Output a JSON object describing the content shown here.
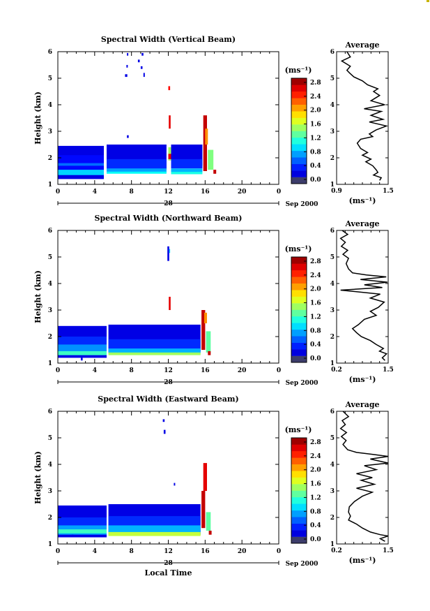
{
  "chart_data": [
    {
      "type": "heatmap",
      "title": "Spectral Width (Vertical Beam)",
      "ylabel": "Height (km)",
      "ylim": [
        1,
        6
      ],
      "xlim": [
        0,
        24
      ],
      "xticks": [
        "0",
        "4",
        "8",
        "12",
        "16",
        "20",
        "0"
      ],
      "date_label": "Sep 2000",
      "day_label": "28",
      "colorbar": {
        "unit": "(ms⁻¹)",
        "ticks": [
          "0.0",
          "0.4",
          "0.8",
          "1.2",
          "1.6",
          "2.0",
          "2.4",
          "2.8"
        ],
        "range": [
          0,
          3.0
        ]
      },
      "cells": [
        [
          0,
          5.0,
          1.2,
          2.45,
          0.3
        ],
        [
          0,
          5.0,
          1.5,
          2.1,
          0.4
        ],
        [
          0,
          5.0,
          1.7,
          1.8,
          0.7
        ],
        [
          0,
          5.0,
          1.35,
          1.55,
          1.0
        ],
        [
          5.3,
          11.8,
          1.6,
          2.5,
          0.3
        ],
        [
          5.3,
          11.8,
          1.55,
          1.95,
          0.5
        ],
        [
          5.3,
          11.8,
          1.45,
          1.6,
          0.85
        ],
        [
          5.3,
          11.8,
          1.4,
          1.48,
          1.15
        ],
        [
          12.3,
          15.7,
          1.7,
          2.5,
          0.3
        ],
        [
          12.3,
          15.7,
          1.6,
          1.95,
          0.5
        ],
        [
          12.3,
          15.7,
          1.45,
          1.6,
          0.9
        ],
        [
          12.3,
          15.7,
          1.38,
          1.47,
          1.2
        ],
        [
          12.0,
          12.3,
          1.9,
          2.4,
          1.6
        ],
        [
          12.05,
          12.25,
          3.1,
          3.6,
          2.7
        ],
        [
          12.0,
          12.3,
          1.95,
          2.15,
          2.7
        ],
        [
          15.8,
          16.2,
          1.5,
          3.6,
          2.8
        ],
        [
          16.0,
          16.3,
          2.5,
          3.1,
          2.2
        ],
        [
          16.3,
          16.9,
          1.55,
          2.3,
          1.5
        ],
        [
          16.9,
          17.2,
          1.4,
          1.55,
          2.8
        ],
        [
          7.3,
          7.55,
          5.05,
          5.15,
          0.3
        ],
        [
          7.45,
          7.6,
          5.4,
          5.5,
          0.3
        ],
        [
          7.5,
          7.65,
          5.85,
          5.95,
          0.3
        ],
        [
          8.7,
          8.9,
          5.6,
          5.7,
          0.3
        ],
        [
          9.0,
          9.2,
          5.35,
          5.45,
          0.3
        ],
        [
          9.1,
          9.3,
          5.85,
          5.95,
          0.3
        ],
        [
          9.3,
          9.45,
          5.05,
          5.2,
          0.3
        ],
        [
          12.0,
          12.2,
          4.55,
          4.7,
          2.6
        ],
        [
          7.5,
          7.7,
          2.75,
          2.85,
          0.3
        ]
      ],
      "profile": {
        "title": "Average",
        "xticks": [
          "0.9",
          "1.5"
        ],
        "xlabel": "(ms⁻¹)",
        "xlim": [
          0.9,
          1.5
        ],
        "points": [
          [
            1.02,
            6.0
          ],
          [
            1.06,
            5.8
          ],
          [
            0.96,
            5.65
          ],
          [
            1.06,
            5.45
          ],
          [
            1.02,
            5.3
          ],
          [
            1.05,
            5.2
          ],
          [
            1.1,
            5.05
          ],
          [
            1.2,
            4.9
          ],
          [
            1.26,
            4.75
          ],
          [
            1.38,
            4.6
          ],
          [
            1.33,
            4.5
          ],
          [
            1.4,
            4.35
          ],
          [
            1.3,
            4.15
          ],
          [
            1.46,
            4.0
          ],
          [
            1.22,
            3.85
          ],
          [
            1.42,
            3.75
          ],
          [
            1.3,
            3.6
          ],
          [
            1.44,
            3.45
          ],
          [
            1.28,
            3.35
          ],
          [
            1.48,
            3.2
          ],
          [
            1.36,
            3.05
          ],
          [
            1.28,
            2.9
          ],
          [
            1.32,
            2.8
          ],
          [
            1.18,
            2.7
          ],
          [
            1.14,
            2.55
          ],
          [
            1.18,
            2.35
          ],
          [
            1.26,
            2.2
          ],
          [
            1.2,
            2.1
          ],
          [
            1.3,
            1.95
          ],
          [
            1.24,
            1.85
          ],
          [
            1.32,
            1.7
          ],
          [
            1.36,
            1.55
          ],
          [
            1.38,
            1.45
          ],
          [
            1.33,
            1.35
          ],
          [
            1.42,
            1.25
          ],
          [
            1.4,
            1.15
          ]
        ]
      }
    },
    {
      "type": "heatmap",
      "title": "Spectral Width (Northward Beam)",
      "ylabel": "Height (km)",
      "ylim": [
        1,
        6
      ],
      "xlim": [
        0,
        24
      ],
      "xticks": [
        "0",
        "4",
        "8",
        "12",
        "16",
        "20",
        "0"
      ],
      "date_label": "Sep 2000",
      "day_label": "28",
      "colorbar": {
        "unit": "(ms⁻¹)",
        "ticks": [
          "0.0",
          "0.4",
          "0.8",
          "1.2",
          "1.6",
          "2.0",
          "2.4",
          "2.8"
        ],
        "range": [
          0,
          3.0
        ]
      },
      "cells": [
        [
          0,
          5.3,
          1.2,
          2.4,
          0.3
        ],
        [
          0,
          5.3,
          1.3,
          2.0,
          0.5
        ],
        [
          0,
          5.3,
          1.35,
          1.7,
          0.8
        ],
        [
          0,
          5.3,
          1.3,
          1.45,
          1.3
        ],
        [
          5.5,
          15.5,
          1.4,
          2.45,
          0.3
        ],
        [
          5.5,
          15.5,
          1.45,
          1.9,
          0.5
        ],
        [
          5.5,
          15.5,
          1.35,
          1.55,
          0.9
        ],
        [
          5.5,
          15.5,
          1.3,
          1.4,
          1.6
        ],
        [
          15.6,
          16.0,
          1.5,
          3.0,
          2.8
        ],
        [
          15.9,
          16.2,
          2.5,
          2.9,
          2.2
        ],
        [
          16.1,
          16.6,
          1.4,
          2.2,
          1.4
        ],
        [
          16.3,
          16.6,
          1.3,
          1.45,
          2.8
        ],
        [
          12.05,
          12.25,
          3.0,
          3.5,
          2.7
        ],
        [
          11.9,
          12.1,
          4.85,
          5.4,
          0.3
        ],
        [
          12.1,
          12.2,
          5.15,
          5.3,
          1.0
        ],
        [
          2.5,
          2.7,
          1.1,
          1.2,
          0.3
        ]
      ],
      "profile": {
        "title": "Average",
        "xticks": [
          "0.2",
          "1.5"
        ],
        "xlabel": "(ms⁻¹)",
        "xlim": [
          0.2,
          1.5
        ],
        "points": [
          [
            0.34,
            6.0
          ],
          [
            0.48,
            5.85
          ],
          [
            0.3,
            5.7
          ],
          [
            0.42,
            5.55
          ],
          [
            0.32,
            5.4
          ],
          [
            0.48,
            5.25
          ],
          [
            0.36,
            5.1
          ],
          [
            0.5,
            4.95
          ],
          [
            0.44,
            4.75
          ],
          [
            0.5,
            4.55
          ],
          [
            0.6,
            4.4
          ],
          [
            0.95,
            4.32
          ],
          [
            1.45,
            4.25
          ],
          [
            0.8,
            4.15
          ],
          [
            1.48,
            4.05
          ],
          [
            0.9,
            3.95
          ],
          [
            1.35,
            3.85
          ],
          [
            0.3,
            3.75
          ],
          [
            1.3,
            3.6
          ],
          [
            1.05,
            3.45
          ],
          [
            1.4,
            3.3
          ],
          [
            1.25,
            3.1
          ],
          [
            1.05,
            2.95
          ],
          [
            1.2,
            2.8
          ],
          [
            0.9,
            2.65
          ],
          [
            0.75,
            2.45
          ],
          [
            0.6,
            2.3
          ],
          [
            0.7,
            2.15
          ],
          [
            0.82,
            2.0
          ],
          [
            1.05,
            1.85
          ],
          [
            1.2,
            1.7
          ],
          [
            1.38,
            1.55
          ],
          [
            1.28,
            1.45
          ],
          [
            1.46,
            1.35
          ],
          [
            1.35,
            1.2
          ],
          [
            1.42,
            1.1
          ]
        ]
      }
    },
    {
      "type": "heatmap",
      "title": "Spectral Width (Eastward Beam)",
      "ylabel": "Height (km)",
      "xlabel": "Local Time",
      "ylim": [
        1,
        6
      ],
      "xlim": [
        0,
        24
      ],
      "xticks": [
        "0",
        "4",
        "8",
        "12",
        "16",
        "20",
        "0"
      ],
      "date_label": "Sep 2000",
      "day_label": "28",
      "colorbar": {
        "unit": "(ms⁻¹)",
        "ticks": [
          "0.0",
          "0.4",
          "0.8",
          "1.2",
          "1.6",
          "2.0",
          "2.4",
          "2.8"
        ],
        "range": [
          0,
          3.0
        ]
      },
      "cells": [
        [
          0,
          5.3,
          1.25,
          2.45,
          0.3
        ],
        [
          0,
          5.3,
          1.4,
          2.0,
          0.5
        ],
        [
          0,
          5.3,
          1.35,
          1.7,
          0.85
        ],
        [
          0,
          5.3,
          1.4,
          1.55,
          1.3
        ],
        [
          5.5,
          15.5,
          1.35,
          2.5,
          0.3
        ],
        [
          5.5,
          15.5,
          1.45,
          2.05,
          0.5
        ],
        [
          5.5,
          15.5,
          1.35,
          1.7,
          0.9
        ],
        [
          5.5,
          15.5,
          1.3,
          1.45,
          1.7
        ],
        [
          15.6,
          16.0,
          1.6,
          3.0,
          2.8
        ],
        [
          15.8,
          16.2,
          3.0,
          4.05,
          2.7
        ],
        [
          16.1,
          16.6,
          1.5,
          2.2,
          1.4
        ],
        [
          16.4,
          16.7,
          1.35,
          1.5,
          2.8
        ],
        [
          11.4,
          11.6,
          5.6,
          5.7,
          0.3
        ],
        [
          11.5,
          11.7,
          5.15,
          5.3,
          0.3
        ],
        [
          12.6,
          12.75,
          3.2,
          3.3,
          0.3
        ],
        [
          1.5,
          1.7,
          1.25,
          1.35,
          0.3
        ]
      ],
      "profile": {
        "title": "Average",
        "xticks": [
          "0.2",
          "1.5"
        ],
        "xlabel": "(ms⁻¹)",
        "xlim": [
          0.2,
          1.5
        ],
        "points": [
          [
            0.36,
            6.0
          ],
          [
            0.5,
            5.8
          ],
          [
            0.34,
            5.65
          ],
          [
            0.42,
            5.5
          ],
          [
            0.3,
            5.35
          ],
          [
            0.45,
            5.2
          ],
          [
            0.32,
            5.05
          ],
          [
            0.44,
            4.9
          ],
          [
            0.36,
            4.75
          ],
          [
            0.48,
            4.55
          ],
          [
            0.7,
            4.45
          ],
          [
            1.1,
            4.38
          ],
          [
            1.5,
            4.3
          ],
          [
            1.05,
            4.2
          ],
          [
            1.5,
            4.05
          ],
          [
            0.9,
            3.95
          ],
          [
            1.2,
            3.8
          ],
          [
            0.7,
            3.65
          ],
          [
            1.1,
            3.5
          ],
          [
            0.82,
            3.4
          ],
          [
            1.15,
            3.25
          ],
          [
            0.7,
            3.1
          ],
          [
            1.1,
            2.95
          ],
          [
            0.85,
            2.8
          ],
          [
            0.65,
            2.6
          ],
          [
            0.52,
            2.4
          ],
          [
            0.5,
            2.2
          ],
          [
            0.55,
            2.05
          ],
          [
            0.5,
            1.9
          ],
          [
            0.7,
            1.75
          ],
          [
            0.85,
            1.6
          ],
          [
            1.05,
            1.45
          ],
          [
            1.3,
            1.35
          ],
          [
            1.5,
            1.3
          ],
          [
            1.3,
            1.2
          ],
          [
            1.42,
            1.1
          ]
        ]
      }
    }
  ]
}
